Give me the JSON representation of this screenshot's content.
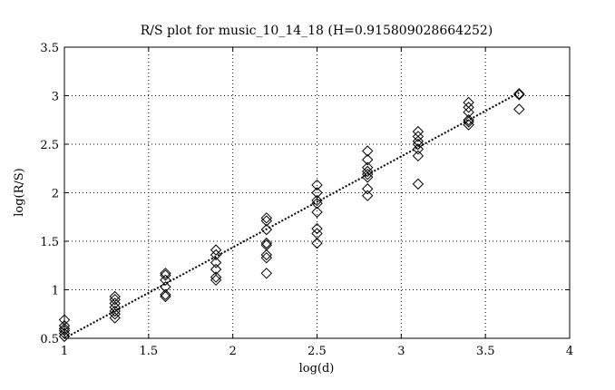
{
  "chart_data": {
    "type": "scatter",
    "title": "R/S plot for music_10_14_18 (H=0.915809028664252)",
    "xlabel": "log(d)",
    "ylabel": "log(R/S)",
    "xlim": [
      1,
      4
    ],
    "ylim": [
      0.5,
      3.5
    ],
    "xticks": [
      1,
      1.5,
      2,
      2.5,
      3,
      3.5,
      4
    ],
    "yticks": [
      0.5,
      1,
      1.5,
      2,
      2.5,
      3,
      3.5
    ],
    "xtick_labels": [
      "1",
      "1.5",
      "2",
      "2.5",
      "3",
      "3.5",
      "4"
    ],
    "ytick_labels": [
      "0.5",
      "1",
      "1.5",
      "2",
      "2.5",
      "3",
      "3.5"
    ],
    "grid": true,
    "series": [
      {
        "marker": "diamond",
        "points": [
          [
            1.0,
            0.52
          ],
          [
            1.0,
            0.55
          ],
          [
            1.0,
            0.58
          ],
          [
            1.0,
            0.6
          ],
          [
            1.0,
            0.63
          ],
          [
            1.0,
            0.69
          ],
          [
            1.3,
            0.71
          ],
          [
            1.3,
            0.75
          ],
          [
            1.3,
            0.78
          ],
          [
            1.3,
            0.82
          ],
          [
            1.3,
            0.86
          ],
          [
            1.3,
            0.9
          ],
          [
            1.3,
            0.93
          ],
          [
            1.6,
            0.93
          ],
          [
            1.6,
            0.95
          ],
          [
            1.6,
            1.03
          ],
          [
            1.6,
            1.1
          ],
          [
            1.6,
            1.15
          ],
          [
            1.6,
            1.17
          ],
          [
            1.9,
            1.1
          ],
          [
            1.9,
            1.13
          ],
          [
            1.9,
            1.21
          ],
          [
            1.9,
            1.28
          ],
          [
            1.9,
            1.36
          ],
          [
            1.9,
            1.41
          ],
          [
            2.2,
            1.17
          ],
          [
            2.2,
            1.33
          ],
          [
            2.2,
            1.36
          ],
          [
            2.2,
            1.46
          ],
          [
            2.2,
            1.48
          ],
          [
            2.2,
            1.62
          ],
          [
            2.2,
            1.71
          ],
          [
            2.2,
            1.74
          ],
          [
            2.5,
            1.48
          ],
          [
            2.5,
            1.58
          ],
          [
            2.5,
            1.63
          ],
          [
            2.5,
            1.8
          ],
          [
            2.5,
            1.89
          ],
          [
            2.5,
            1.92
          ],
          [
            2.5,
            2.0
          ],
          [
            2.5,
            2.08
          ],
          [
            2.8,
            1.97
          ],
          [
            2.8,
            2.04
          ],
          [
            2.8,
            2.16
          ],
          [
            2.8,
            2.19
          ],
          [
            2.8,
            2.22
          ],
          [
            2.8,
            2.26
          ],
          [
            2.8,
            2.34
          ],
          [
            2.8,
            2.43
          ],
          [
            3.1,
            2.09
          ],
          [
            3.1,
            2.38
          ],
          [
            3.1,
            2.45
          ],
          [
            3.1,
            2.5
          ],
          [
            3.1,
            2.53
          ],
          [
            3.1,
            2.58
          ],
          [
            3.1,
            2.63
          ],
          [
            3.4,
            2.7
          ],
          [
            3.4,
            2.73
          ],
          [
            3.4,
            2.75
          ],
          [
            3.4,
            2.83
          ],
          [
            3.4,
            2.88
          ],
          [
            3.4,
            2.93
          ],
          [
            3.7,
            2.86
          ],
          [
            3.7,
            3.01
          ],
          [
            3.7,
            3.02
          ]
        ]
      },
      {
        "type": "line",
        "style": "dotted",
        "x": [
          1.0,
          3.7
        ],
        "y": [
          0.5,
          3.03
        ]
      }
    ]
  }
}
